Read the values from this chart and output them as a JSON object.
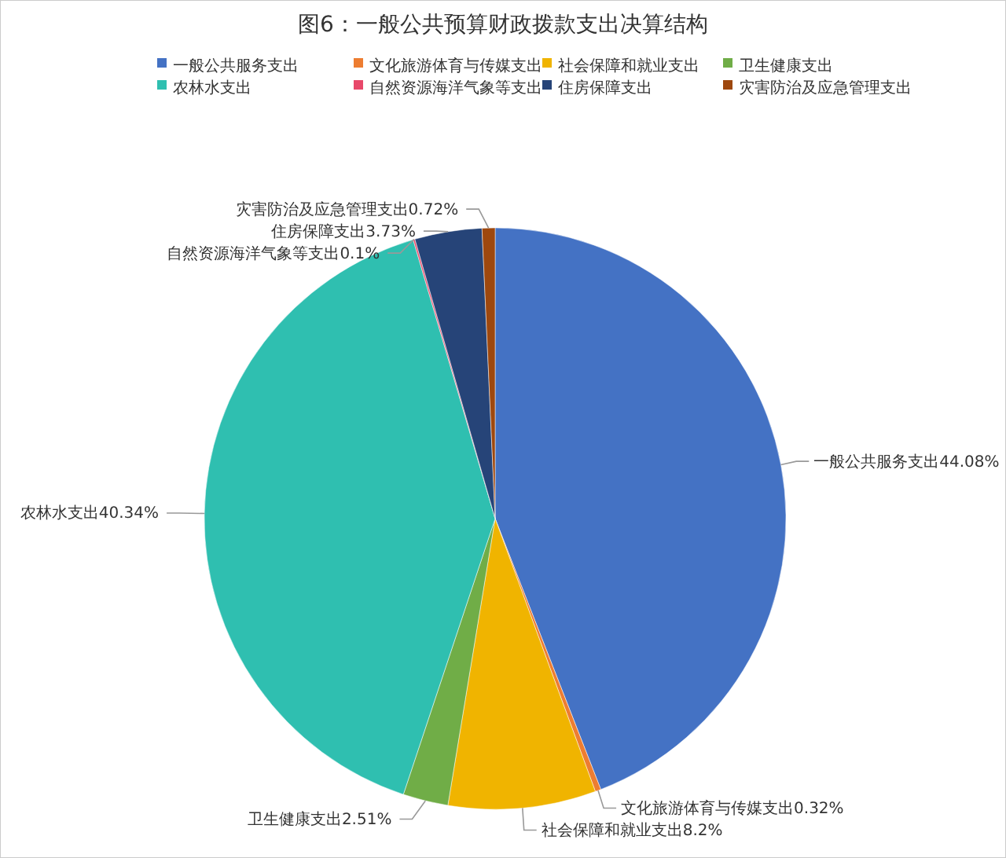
{
  "chart_data": {
    "type": "pie",
    "title": "图6：一般公共预算财政拨款支出决算结构",
    "categories": [
      "一般公共服务支出",
      "文化旅游体育与传媒支出",
      "社会保障和就业支出",
      "卫生健康支出",
      "农林水支出",
      "自然资源海洋气象等支出",
      "住房保障支出",
      "灾害防治及应急管理支出"
    ],
    "values": [
      44.08,
      0.32,
      8.2,
      2.51,
      40.34,
      0.1,
      3.73,
      0.72
    ],
    "value_labels": [
      "44.08%",
      "0.32%",
      "8.2%",
      "2.51%",
      "40.34%",
      "0.1%",
      "3.73%",
      "0.72%"
    ],
    "colors": [
      "#4472c4",
      "#ed7d31",
      "#f0b400",
      "#70ad47",
      "#2fbfb0",
      "#e8486a",
      "#264478",
      "#9e480e"
    ],
    "legend": "top"
  }
}
